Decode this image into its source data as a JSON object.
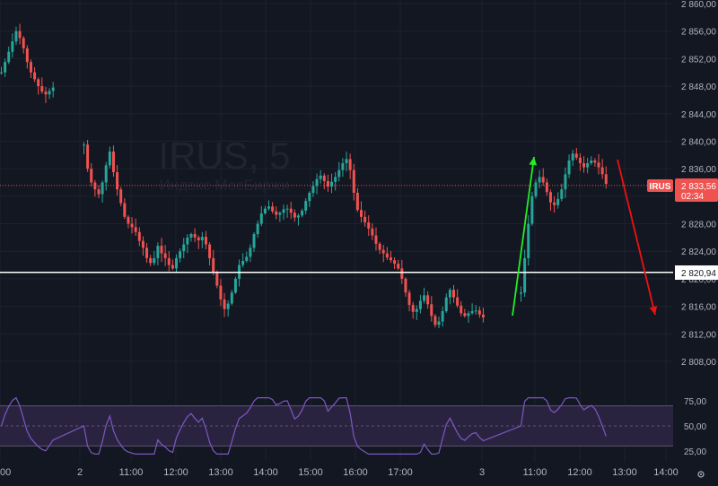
{
  "watermark": {
    "symbol": "IRUS, 5",
    "exchange": "Индекс МосБиржи"
  },
  "price_badge": {
    "value": "2 833,56",
    "countdown": "02:34",
    "tag": "IRUS"
  },
  "hline_label": "2 820,94",
  "colors": {
    "background": "#131722",
    "up": "#26a69a",
    "down": "#ef5350",
    "rsi_line": "#7e57c2",
    "rsi_band": "#2a2340",
    "green_arrow": "#22ee22",
    "red_arrow": "#ee1111",
    "hline": "#ffffff",
    "grid": "#1e222d",
    "axis_text": "#b2b5be"
  },
  "chart_data": [
    {
      "type": "candlestick",
      "price_axis_ticks": [
        "2 860,00",
        "2 856,00",
        "2 852,00",
        "2 848,00",
        "2 844,00",
        "2 840,00",
        "2 836,00",
        "2 832,00",
        "2 828,00",
        "2 824,00",
        "2 820,00",
        "2 816,00",
        "2 812,00",
        "2 808,00"
      ],
      "time_axis_labels": [
        "00",
        "2",
        "11:00",
        "12:00",
        "13:00",
        "14:00",
        "15:00",
        "16:00",
        "17:00",
        "3",
        "11:00",
        "12:00",
        "13:00",
        "14:00"
      ],
      "ylim": [
        2804,
        2861
      ],
      "last_price": 2833.56,
      "horizontal_line": 2820.94,
      "grid": true,
      "legend": false,
      "series": [
        {
          "name": "IRUS, 5",
          "segments": [
            {
              "label": "day_1",
              "close_path": [
                2850,
                2851.5,
                2853,
                2854.5,
                2856,
                2855,
                2853.5,
                2851.5,
                2850,
                2849,
                2848,
                2847.2,
                2846.8,
                2847.3,
                2847.8
              ]
            },
            {
              "label": "day_2",
              "close_path": [
                2839.5,
                2836,
                2834,
                2833,
                2832.3,
                2834,
                2836.5,
                2838.5,
                2835.5,
                2833,
                2831,
                2829,
                2828,
                2827.5,
                2826.8,
                2825.5,
                2824.5,
                2823,
                2822.3,
                2823,
                2824.8,
                2823.7,
                2823,
                2822,
                2821.5,
                2823,
                2824,
                2825,
                2826,
                2826.5,
                2826,
                2825.6,
                2826.1,
                2825,
                2823,
                2821,
                2819,
                2817,
                2815.6,
                2816.4,
                2818,
                2820,
                2822,
                2822.6,
                2823.2,
                2824.5,
                2826.5,
                2828,
                2829.5,
                2830.2,
                2830.5,
                2829.8,
                2829.3,
                2829.6,
                2830.1,
                2830.2,
                2829.6,
                2828.9,
                2829.2,
                2829.9,
                2831.3,
                2832.5,
                2833.5,
                2834.5,
                2835,
                2834.2,
                2833.4,
                2834.1,
                2834.8,
                2835.8,
                2836.8,
                2837.4,
                2835.8,
                2832.5,
                2830,
                2829,
                2828.2,
                2827.3,
                2826.3,
                2825.1,
                2824.2,
                2823.7,
                2823.1,
                2822.7,
                2822.2,
                2821.5,
                2820,
                2818,
                2816.2,
                2815.2,
                2815.6,
                2816.8,
                2817.6,
                2816.3,
                2814.6,
                2813.3,
                2813.8,
                2815.3,
                2817.3,
                2818.4,
                2817.3,
                2816.1,
                2815,
                2814.6,
                2815,
                2815.3,
                2815.4,
                2814.8,
                2814.4
              ]
            },
            {
              "label": "day_3",
              "close_path": [
                2818,
                2823,
                2828,
                2832,
                2834,
                2834.8,
                2834,
                2832.6,
                2831.1,
                2830.7,
                2831.6,
                2833,
                2835.2,
                2837.2,
                2838.2,
                2837.6,
                2836.8,
                2836.2,
                2836.8,
                2837.2,
                2836.9,
                2836.2,
                2835.2,
                2833.8
              ]
            }
          ]
        }
      ]
    },
    {
      "type": "line",
      "rsi_axis_ticks": [
        "75,00",
        "50,00",
        "25,00"
      ],
      "ylim": [
        20,
        80
      ],
      "band": [
        30,
        70
      ],
      "midline": 50,
      "grid": false,
      "legend": false
    }
  ]
}
